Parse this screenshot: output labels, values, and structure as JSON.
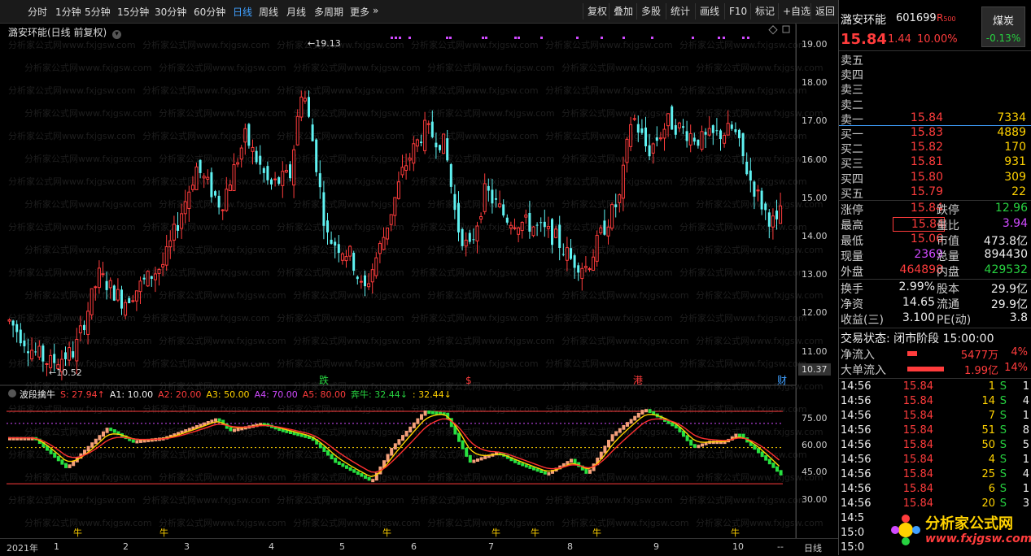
{
  "toolbar": {
    "tabs": [
      "分时",
      "1分钟",
      "5分钟",
      "15分钟",
      "30分钟",
      "60分钟",
      "日线",
      "周线",
      "月线",
      "多周期",
      "更多"
    ],
    "active": "日线",
    "more_arrow": "»",
    "right_items": [
      "复权",
      "叠加",
      "多股",
      "统计",
      "画线",
      "F10",
      "标记",
      "+自选",
      "返回"
    ]
  },
  "chart": {
    "stock_title": "潞安环能(日线 前复权)",
    "high_marker": "19.13",
    "low_marker": "10.52",
    "current_price_tag": "10.37",
    "price_ticks": [
      "19.00",
      "18.00",
      "17.00",
      "16.00",
      "15.00",
      "14.00",
      "13.00",
      "12.00",
      "11.00"
    ],
    "event_labels": [
      {
        "text": "跌",
        "color": "#27d240"
      },
      {
        "text": "$",
        "color": "#ff3c3c"
      },
      {
        "text": "港",
        "color": "#ff3c3c"
      },
      {
        "text": "财",
        "color": "#40a0ff"
      }
    ],
    "watermark": "分析家公式网www.fxjgsw.com",
    "up_color": "#ff3c3c",
    "down_color": "#5ff2f2"
  },
  "indicator": {
    "name": "波段擒牛",
    "params": [
      {
        "text": "S: 27.94↑",
        "color": "#ff3c3c"
      },
      {
        "text": "A1: 10.00",
        "color": "#eeeeee"
      },
      {
        "text": "A2: 20.00",
        "color": "#ff3c3c"
      },
      {
        "text": "A3: 50.00",
        "color": "#ffd200"
      },
      {
        "text": "A4: 70.00",
        "color": "#d04aff"
      },
      {
        "text": "A5: 80.00",
        "color": "#ff3c3c"
      },
      {
        "text": "奔牛: 32.44↓",
        "color": "#27d240"
      },
      {
        "text": ": 32.44↓",
        "color": "#ffd200"
      }
    ],
    "axis_ticks": [
      "75.00",
      "60.00",
      "45.00",
      "30.00"
    ],
    "niu_label": "牛"
  },
  "time_axis": {
    "labels": [
      "2021年",
      "1",
      "2",
      "3",
      "4",
      "5",
      "6",
      "7",
      "8",
      "9",
      "10"
    ],
    "period": "日线",
    "scroll": "--"
  },
  "quote": {
    "name": "潞安环能",
    "code": "601699",
    "rtag": "R",
    "rnum": "500",
    "sector": "煤炭",
    "sector_change": "-0.13%",
    "price": "15.84",
    "change": "1.44",
    "change_pct": "10.00%",
    "sells": [
      {
        "label": "卖五",
        "price": "",
        "vol": ""
      },
      {
        "label": "卖四",
        "price": "",
        "vol": ""
      },
      {
        "label": "卖三",
        "price": "",
        "vol": ""
      },
      {
        "label": "卖二",
        "price": "",
        "vol": ""
      },
      {
        "label": "卖一",
        "price": "15.84",
        "vol": "7334"
      }
    ],
    "buys": [
      {
        "label": "买一",
        "price": "15.83",
        "vol": "4889"
      },
      {
        "label": "买二",
        "price": "15.82",
        "vol": "170"
      },
      {
        "label": "买三",
        "price": "15.81",
        "vol": "931"
      },
      {
        "label": "买四",
        "price": "15.80",
        "vol": "309"
      },
      {
        "label": "买五",
        "price": "15.79",
        "vol": "22"
      }
    ],
    "stats": [
      {
        "l1": "涨停",
        "v1": "15.84",
        "c1": "red",
        "l2": "跌停",
        "v2": "12.96",
        "c2": "green"
      },
      {
        "l1": "最高",
        "v1": "15.84",
        "c1": "red",
        "l2": "量比",
        "v2": "3.94",
        "c2": "purple"
      },
      {
        "l1": "最低",
        "v1": "15.06",
        "c1": "red",
        "l2": "市值",
        "v2": "473.8亿",
        "c2": "white"
      },
      {
        "l1": "现量",
        "v1": "2369",
        "c1": "purple",
        "l2": "总量",
        "v2": "894430",
        "c2": "white"
      },
      {
        "l1": "外盘",
        "v1": "464898",
        "c1": "red",
        "l2": "内盘",
        "v2": "429532",
        "c2": "green"
      }
    ],
    "fin": [
      {
        "l1": "换手",
        "v1": "2.99%",
        "l2": "股本",
        "v2": "29.9亿"
      },
      {
        "l1": "净资",
        "v1": "14.65",
        "l2": "流通",
        "v2": "29.9亿"
      },
      {
        "l1": "收益(三)",
        "v1": "3.100",
        "l2": "PE(动)",
        "v2": "3.8"
      }
    ],
    "trade_status": "交易状态: 闭市阶段 15:00:00",
    "flows": [
      {
        "label": "净流入",
        "value": "5477万",
        "pct": "4%",
        "bar": 0.2
      },
      {
        "label": "大单流入",
        "value": "1.99亿",
        "pct": "14%",
        "bar": 0.75
      }
    ],
    "ticks": [
      {
        "time": "14:56",
        "price": "15.84",
        "vol": "1",
        "side": "S",
        "n": "1"
      },
      {
        "time": "14:56",
        "price": "15.84",
        "vol": "14",
        "side": "S",
        "n": "4"
      },
      {
        "time": "14:56",
        "price": "15.84",
        "vol": "7",
        "side": "S",
        "n": "1"
      },
      {
        "time": "14:56",
        "price": "15.84",
        "vol": "51",
        "side": "S",
        "n": "8"
      },
      {
        "time": "14:56",
        "price": "15.84",
        "vol": "50",
        "side": "S",
        "n": "5"
      },
      {
        "time": "14:56",
        "price": "15.84",
        "vol": "4",
        "side": "S",
        "n": "1"
      },
      {
        "time": "14:56",
        "price": "15.84",
        "vol": "25",
        "side": "S",
        "n": "4"
      },
      {
        "time": "14:56",
        "price": "15.84",
        "vol": "6",
        "side": "S",
        "n": "1"
      },
      {
        "time": "14:56",
        "price": "15.84",
        "vol": "20",
        "side": "S",
        "n": "3"
      },
      {
        "time": "14:5",
        "price": "",
        "vol": "",
        "side": "",
        "n": ""
      },
      {
        "time": "15:0",
        "price": "",
        "vol": "",
        "side": "",
        "n": ""
      },
      {
        "time": "15:0",
        "price": "",
        "vol": "",
        "side": "",
        "n": ""
      }
    ],
    "logo_text": "分析家公式网",
    "logo_url": "www.fxjgsw.com"
  }
}
